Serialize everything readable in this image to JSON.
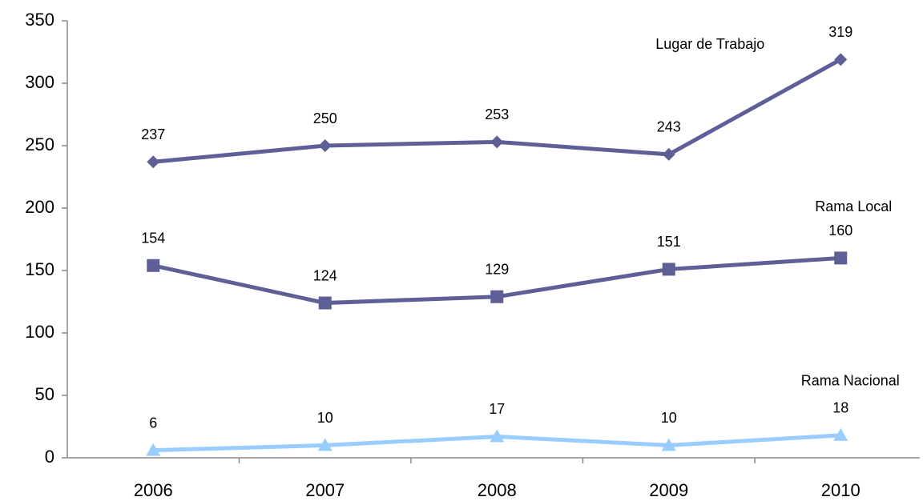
{
  "chart_data": {
    "type": "line",
    "categories": [
      "2006",
      "2007",
      "2008",
      "2009",
      "2010"
    ],
    "series": [
      {
        "name": "Lugar de Trabajo",
        "color": "#5f5f97",
        "marker": "diamond",
        "values": [
          237,
          250,
          253,
          243,
          319
        ]
      },
      {
        "name": "Rama Local",
        "color": "#5f5f97",
        "marker": "square",
        "values": [
          154,
          124,
          129,
          151,
          160
        ]
      },
      {
        "name": "Rama Nacional",
        "color": "#99ccff",
        "marker": "triangle",
        "values": [
          6,
          10,
          17,
          10,
          18
        ]
      }
    ],
    "ylim": [
      0,
      350
    ],
    "yticks": [
      0,
      50,
      100,
      150,
      200,
      250,
      300,
      350
    ],
    "grid": false
  }
}
